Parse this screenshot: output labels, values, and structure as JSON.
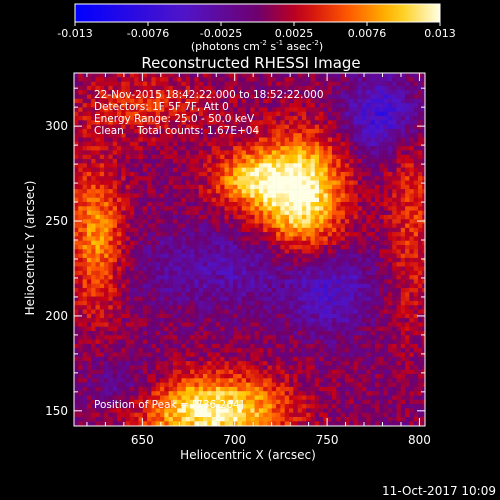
{
  "chart_data": {
    "type": "heatmap",
    "title": "Reconstructed RHESSI Image",
    "xlabel": "Heliocentric X (arcsec)",
    "ylabel": "Heliocentric Y (arcsec)",
    "xlim": [
      613,
      803
    ],
    "ylim": [
      142,
      328
    ],
    "xticks": [
      650,
      700,
      750,
      800
    ],
    "yticks": [
      150,
      200,
      250,
      300
    ],
    "colorbar": {
      "ticks": [
        "-0.013",
        "-0.0076",
        "-0.0025",
        "0.0025",
        "0.0076",
        "0.013"
      ],
      "range": [
        -0.013,
        0.013
      ],
      "label_main": "(photons cm",
      "label_exp1": "-2",
      "label_mid1": " s",
      "label_exp2": "-1",
      "label_mid2": " asec",
      "label_exp3": "-2",
      "label_end": ")"
    },
    "info_lines": [
      "22-Nov-2015 18:42:22.000 to 18:52:22.000",
      "Detectors: 1F 5F 7F, Att 0",
      "Energy Range: 25.0 - 50.0 keV",
      "Clean    Total counts: 1.67E+04"
    ],
    "peak_label": "Position of Peak = [736,264]",
    "peak": [
      736,
      264
    ],
    "max_value": 0.013,
    "sources": [
      {
        "x": 736,
        "y": 264,
        "sx": 16,
        "sy": 22,
        "amp": 0.013
      },
      {
        "x": 708,
        "y": 272,
        "sx": 15,
        "sy": 11,
        "amp": 0.0085
      },
      {
        "x": 688,
        "y": 150,
        "sx": 28,
        "sy": 13,
        "amp": 0.0125
      },
      {
        "x": 625,
        "y": 240,
        "sx": 11,
        "sy": 28,
        "amp": 0.008
      },
      {
        "x": 795,
        "y": 250,
        "sx": 9,
        "sy": 40,
        "amp": 0.0045
      },
      {
        "x": 650,
        "y": 310,
        "sx": 28,
        "sy": 12,
        "amp": 0.004
      },
      {
        "x": 700,
        "y": 225,
        "sx": 45,
        "sy": 14,
        "amp": -0.004
      },
      {
        "x": 780,
        "y": 306,
        "sx": 14,
        "sy": 14,
        "amp": -0.0075
      },
      {
        "x": 752,
        "y": 210,
        "sx": 14,
        "sy": 14,
        "amp": -0.005
      },
      {
        "x": 640,
        "y": 163,
        "sx": 14,
        "sy": 10,
        "amp": -0.0035
      }
    ]
  },
  "footer": {
    "date": "11-Oct-2017 10:09"
  }
}
